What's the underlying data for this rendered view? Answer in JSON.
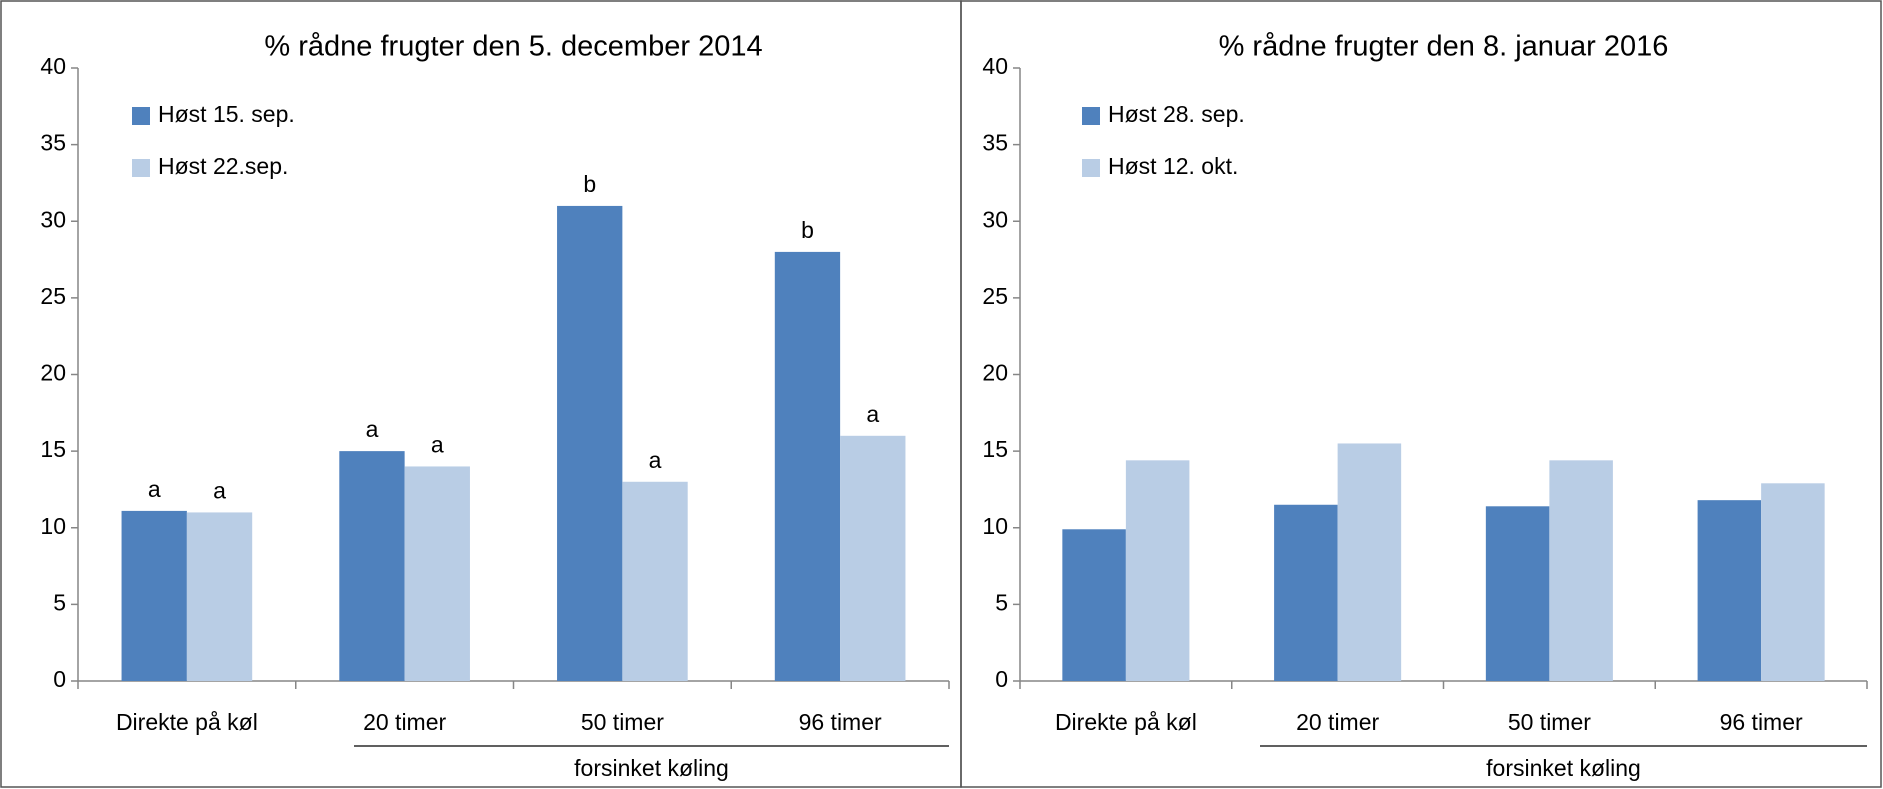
{
  "chart_data": [
    {
      "type": "bar",
      "title": "% rådne frugter den 5. december 2014",
      "categories": [
        "Direkte på køl",
        "20 timer",
        "50 timer",
        "96 timer"
      ],
      "group_label": "forsinket køling",
      "series": [
        {
          "name": "Høst 15. sep.",
          "color": "#4f81bd",
          "values": [
            11.1,
            15,
            31,
            28
          ],
          "annotations": [
            "a",
            "a",
            "b",
            "b"
          ]
        },
        {
          "name": "Høst 22.sep.",
          "color": "#b9cde5",
          "values": [
            11,
            14,
            13,
            16
          ],
          "annotations": [
            "a",
            "a",
            "a",
            "a"
          ]
        }
      ],
      "ylim": [
        0,
        40
      ],
      "yticks": [
        0,
        5,
        10,
        15,
        20,
        25,
        30,
        35,
        40
      ],
      "grid": false,
      "legend": "upper left"
    },
    {
      "type": "bar",
      "title": "% rådne frugter den 8. januar 2016",
      "categories": [
        "Direkte på køl",
        "20 timer",
        "50 timer",
        "96 timer"
      ],
      "group_label": "forsinket køling",
      "series": [
        {
          "name": "Høst 28. sep.",
          "color": "#4f81bd",
          "values": [
            9.9,
            11.5,
            11.4,
            11.8
          ]
        },
        {
          "name": "Høst 12. okt.",
          "color": "#b9cde5",
          "values": [
            14.4,
            15.5,
            14.4,
            12.9
          ]
        }
      ],
      "ylim": [
        0,
        40
      ],
      "yticks": [
        0,
        5,
        10,
        15,
        20,
        25,
        30,
        35,
        40
      ],
      "grid": false,
      "legend": "upper left"
    }
  ]
}
